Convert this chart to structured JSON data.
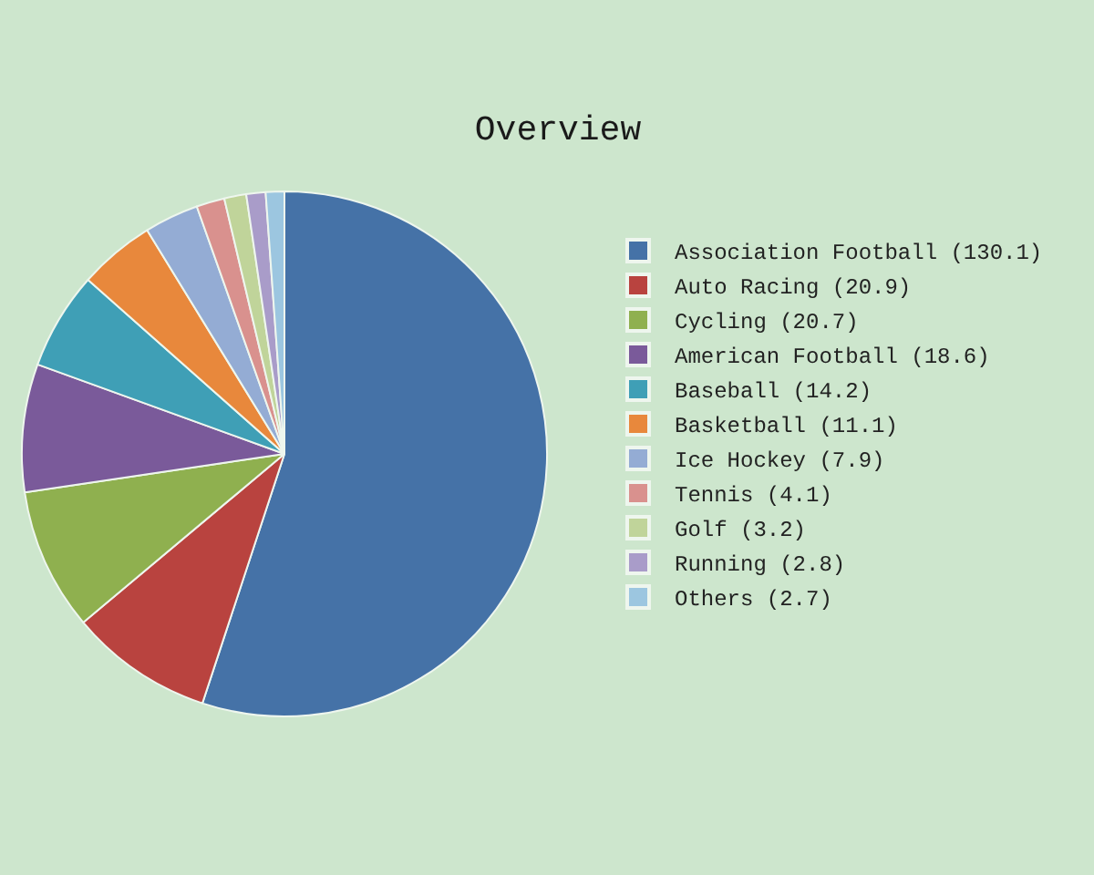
{
  "chart_data": {
    "type": "pie",
    "title": "Overview",
    "categories": [
      "Association Football (130.1)",
      "Auto Racing (20.9)",
      "Cycling (20.7)",
      "American Football (18.6)",
      "Baseball (14.2)",
      "Basketball (11.1)",
      "Ice Hockey (7.9)",
      "Tennis (4.1)",
      "Golf (3.2)",
      "Running (2.8)",
      "Others (2.7)"
    ],
    "values": [
      130.1,
      20.9,
      20.7,
      18.6,
      14.2,
      11.1,
      7.9,
      4.1,
      3.2,
      2.8,
      2.7
    ],
    "colors": [
      "#4572a7",
      "#b9433f",
      "#8fb04f",
      "#7a5a9a",
      "#3f9fb6",
      "#e8883c",
      "#94acd4",
      "#d9918e",
      "#c0d49a",
      "#a99cc9",
      "#9cc6e0"
    ],
    "legend": "right"
  }
}
